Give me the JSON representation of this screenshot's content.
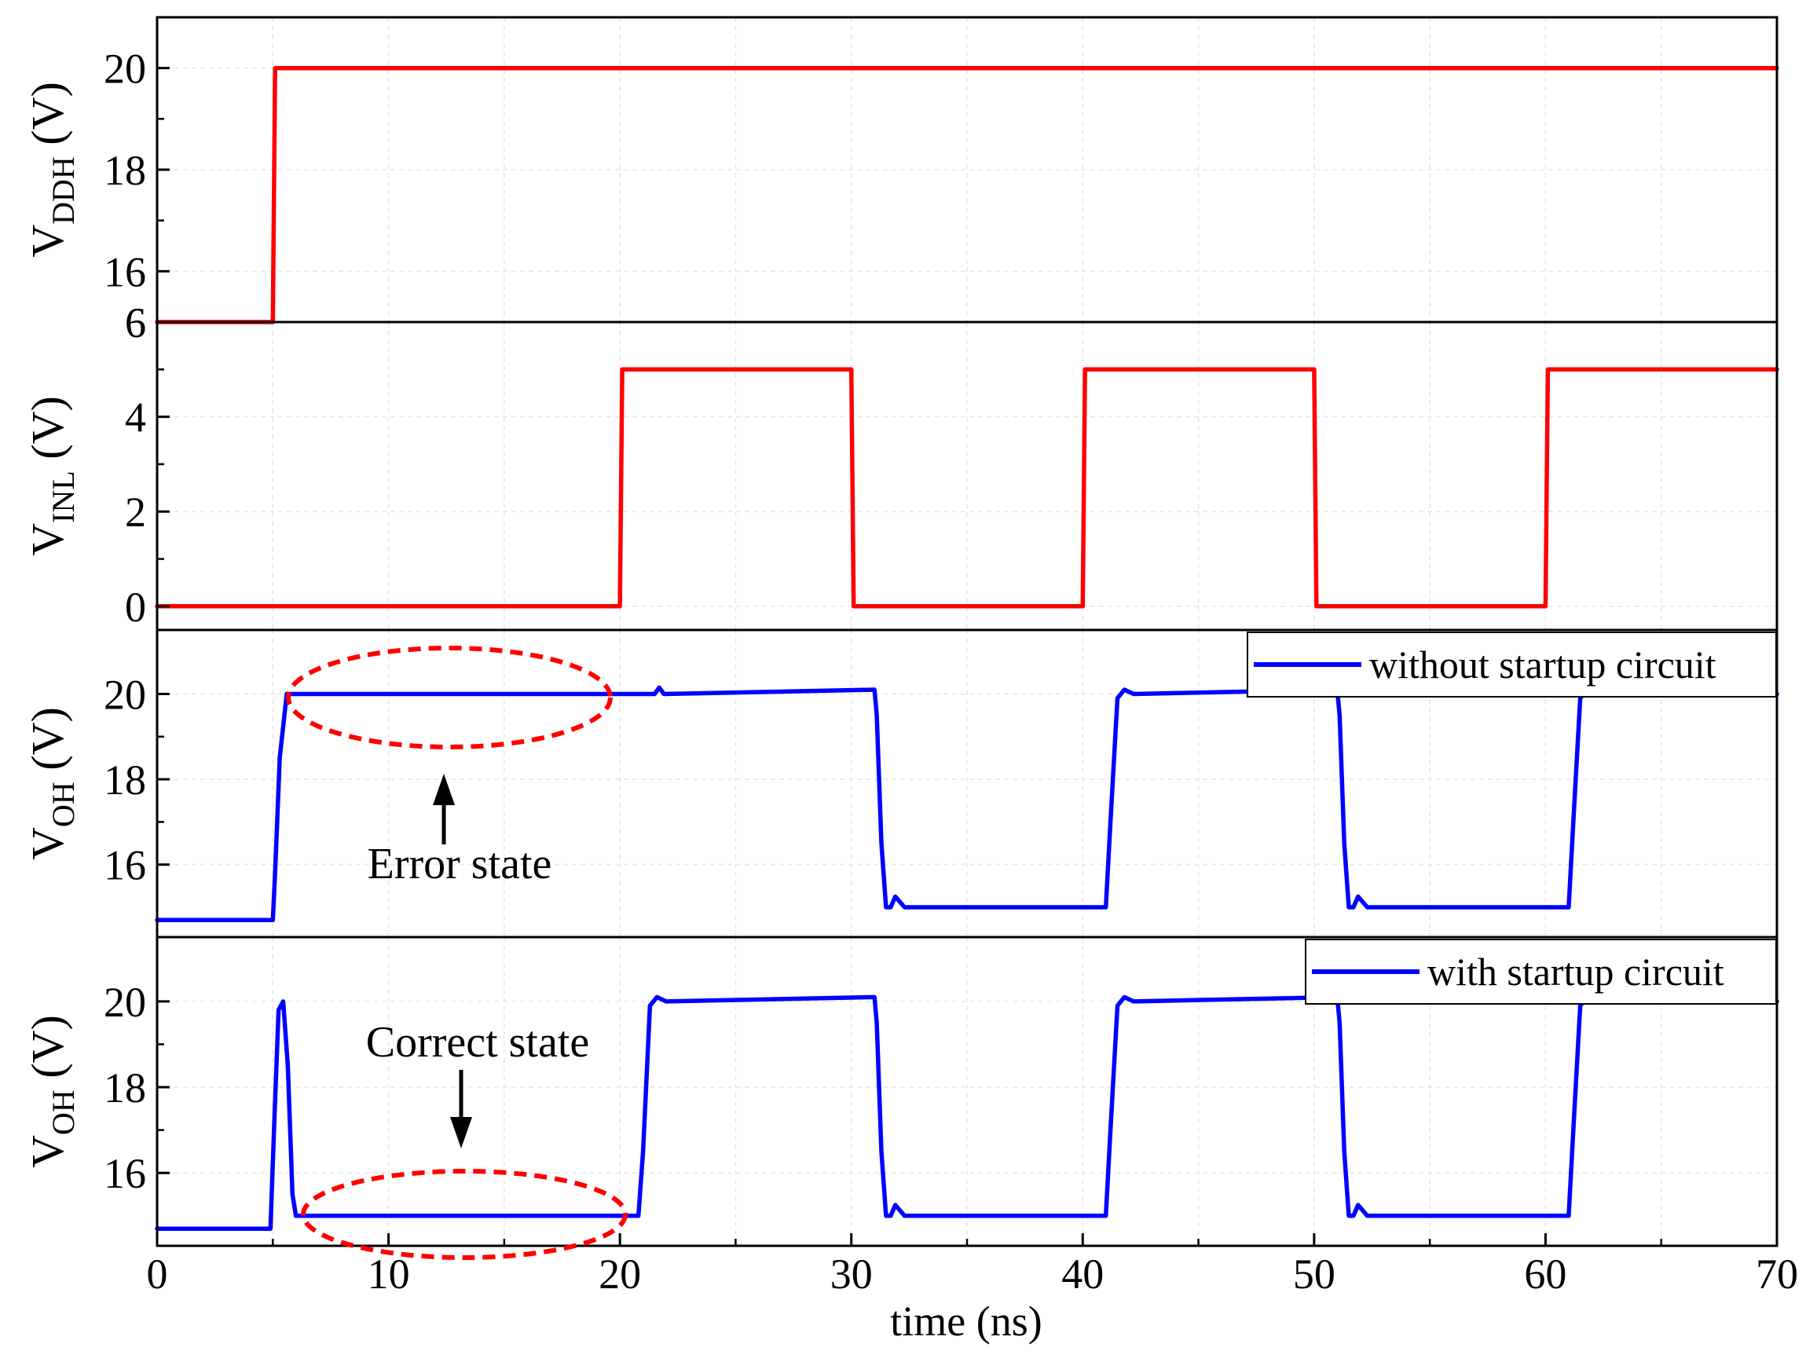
{
  "chart_data": {
    "type": "line",
    "shared_x": {
      "label": "time (ns)",
      "range": [
        0,
        70
      ],
      "ticks": [
        "0",
        "10",
        "20",
        "30",
        "40",
        "50",
        "60",
        "70"
      ]
    },
    "grid": true,
    "panels": [
      {
        "id": "vddh",
        "ylabel_main": "V",
        "ylabel_sub": "DDH",
        "ylabel_unit": " (V)",
        "ylim": [
          15,
          21
        ],
        "ticks": [
          {
            "v": 16,
            "label": "16"
          },
          {
            "v": 18,
            "label": "18"
          },
          {
            "v": 20,
            "label": "20"
          }
        ],
        "edge_label": "6",
        "series": [
          {
            "color": "#ff0000",
            "x": [
              0,
              5,
              5.1,
              70
            ],
            "y": [
              15.0,
              15.0,
              20.0,
              20.0
            ]
          }
        ],
        "legend": null
      },
      {
        "id": "vinl",
        "ylabel_main": "V",
        "ylabel_sub": "INL",
        "ylabel_unit": " (V)",
        "ylim": [
          -0.5,
          6
        ],
        "ticks": [
          {
            "v": 0,
            "label": "0"
          },
          {
            "v": 2,
            "label": "2"
          },
          {
            "v": 4,
            "label": "4"
          },
          {
            "v": 6,
            "label": "6"
          }
        ],
        "series": [
          {
            "color": "#ff0000",
            "x": [
              0,
              20,
              20.1,
              30,
              30.1,
              40,
              40.1,
              50,
              50.1,
              60,
              60.1,
              70
            ],
            "y": [
              0,
              0,
              5,
              5,
              0,
              0,
              5,
              5,
              0,
              0,
              5,
              5
            ]
          }
        ],
        "legend": null
      },
      {
        "id": "voh1",
        "ylabel_main": "V",
        "ylabel_sub": "OH",
        "ylabel_unit": " (V)",
        "ylim": [
          14.3,
          21.5
        ],
        "ticks": [
          {
            "v": 16,
            "label": "16"
          },
          {
            "v": 18,
            "label": "18"
          },
          {
            "v": 20,
            "label": "20"
          }
        ],
        "series": [
          {
            "color": "#0000ff",
            "name": "without startup circuit",
            "x": [
              0,
              5.0,
              5.1,
              5.3,
              5.6,
              6.0,
              21.5,
              21.7,
              21.9,
              31.0,
              31.1,
              31.3,
              31.5,
              31.7,
              31.9,
              32.3,
              41.0,
              41.2,
              41.5,
              41.8,
              42.2,
              51.0,
              51.1,
              51.3,
              51.5,
              51.7,
              51.9,
              52.3,
              61.0,
              61.2,
              61.5,
              61.8,
              62.2,
              70
            ],
            "y": [
              14.7,
              14.7,
              15.8,
              18.5,
              20.0,
              20.0,
              20.0,
              20.15,
              20.0,
              20.1,
              19.5,
              16.5,
              15.0,
              15.0,
              15.25,
              15.0,
              15.0,
              17.0,
              19.9,
              20.1,
              20.0,
              20.1,
              19.5,
              16.5,
              15.0,
              15.0,
              15.25,
              15.0,
              15.0,
              17.0,
              19.9,
              20.1,
              20.0,
              20.0
            ]
          }
        ],
        "legend": {
          "label": "without startup circuit"
        },
        "annotation": {
          "text": "Error state"
        }
      },
      {
        "id": "voh2",
        "ylabel_main": "V",
        "ylabel_sub": "OH",
        "ylabel_unit": " (V)",
        "ylim": [
          14.3,
          21.5
        ],
        "ticks": [
          {
            "v": 16,
            "label": "16"
          },
          {
            "v": 18,
            "label": "18"
          },
          {
            "v": 20,
            "label": "20"
          }
        ],
        "series": [
          {
            "color": "#0000ff",
            "name": "with startup circuit",
            "x": [
              0,
              4.9,
              5.05,
              5.25,
              5.45,
              5.65,
              5.85,
              6.0,
              20.8,
              21.0,
              21.3,
              21.6,
              22.0,
              31.0,
              31.1,
              31.3,
              31.5,
              31.7,
              31.9,
              32.3,
              41.0,
              41.2,
              41.5,
              41.8,
              42.2,
              51.0,
              51.1,
              51.3,
              51.5,
              51.7,
              51.9,
              52.3,
              61.0,
              61.2,
              61.5,
              61.8,
              62.2,
              70
            ],
            "y": [
              14.7,
              14.7,
              17.0,
              19.8,
              20.0,
              18.5,
              15.5,
              15.0,
              15.0,
              16.5,
              19.9,
              20.1,
              20.0,
              20.1,
              19.5,
              16.5,
              15.0,
              15.0,
              15.25,
              15.0,
              15.0,
              17.0,
              19.9,
              20.1,
              20.0,
              20.1,
              19.5,
              16.5,
              15.0,
              15.0,
              15.25,
              15.0,
              15.0,
              17.0,
              19.9,
              20.1,
              20.0,
              20.0
            ]
          }
        ],
        "legend": {
          "label": "with startup circuit"
        },
        "annotation": {
          "text": "Correct state"
        }
      }
    ]
  }
}
